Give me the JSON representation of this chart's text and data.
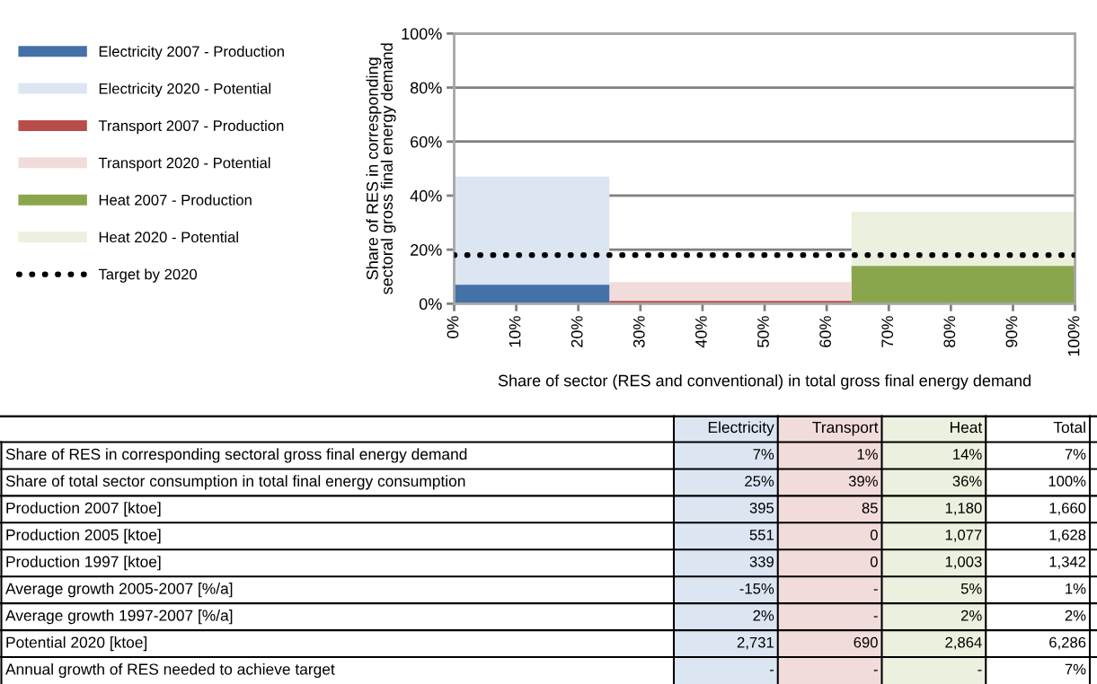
{
  "chart_data": [
    {
      "type": "area",
      "xlabel": "Share of sector (RES and conventional) in total gross final energy demand",
      "ylabel": "Share of RES in corresponding\nsectoral gross final energy demand",
      "series": [
        {
          "name": "Electricity 2007 - Production",
          "color": "#4571a9",
          "x": [
            0,
            25
          ],
          "values": [
            7,
            7
          ]
        },
        {
          "name": "Electricity 2020 - Potential",
          "color": "#dce6f2",
          "x": [
            0,
            25
          ],
          "values": [
            47,
            47
          ]
        },
        {
          "name": "Transport 2007 - Production",
          "color": "#b84d4a",
          "x": [
            25,
            64
          ],
          "values": [
            1,
            1
          ]
        },
        {
          "name": "Transport 2020 - Potential",
          "color": "#f2dcdb",
          "x": [
            25,
            64
          ],
          "values": [
            8,
            8
          ]
        },
        {
          "name": "Heat 2007 - Production",
          "color": "#8aa64d",
          "x": [
            64,
            100
          ],
          "values": [
            14,
            14
          ]
        },
        {
          "name": "Heat 2020 - Potential",
          "color": "#ebf1de",
          "x": [
            64,
            100
          ],
          "values": [
            34,
            34
          ]
        },
        {
          "name": "Target by 2020",
          "type": "line",
          "color": "#000000",
          "line_style": "dotted",
          "x": [
            0,
            100
          ],
          "values": [
            18,
            18
          ]
        }
      ],
      "xlim": [
        0,
        100
      ],
      "ylim": [
        0,
        100
      ],
      "xticks": [
        {
          "value": 0,
          "label": "0%"
        },
        {
          "value": 10,
          "label": "10%"
        },
        {
          "value": 20,
          "label": "20%"
        },
        {
          "value": 30,
          "label": "30%"
        },
        {
          "value": 40,
          "label": "40%"
        },
        {
          "value": 50,
          "label": "50%"
        },
        {
          "value": 60,
          "label": "60%"
        },
        {
          "value": 70,
          "label": "70%"
        },
        {
          "value": 80,
          "label": "80%"
        },
        {
          "value": 90,
          "label": "90%"
        },
        {
          "value": 100,
          "label": "100%"
        }
      ],
      "yticks": [
        {
          "value": 0,
          "label": "0%"
        },
        {
          "value": 20,
          "label": "20%"
        },
        {
          "value": 40,
          "label": "40%"
        },
        {
          "value": 60,
          "label": "60%"
        },
        {
          "value": 80,
          "label": "80%"
        },
        {
          "value": 100,
          "label": "100%"
        }
      ],
      "grid": "y",
      "legend": "left"
    },
    {
      "type": "other",
      "categories": [
        "Electricity",
        "Transport",
        "Heat",
        "Total"
      ],
      "colors": [
        "#dce6f2",
        "#f2dcdb",
        "#ebf1de",
        "#ffffff"
      ],
      "y_categories": [
        "Share of RES in corresponding sectoral gross final energy demand",
        "Share of total sector consumption in total final energy consumption",
        "Production 2007 [ktoe]",
        "Production 2005 [ktoe]",
        "Production 1997 [ktoe]",
        "Average growth 2005-2007 [%/a]",
        "Average growth 1997-2007 [%/a]",
        "Potential 2020 [ktoe]",
        "Annual growth of RES needed to achieve target"
      ],
      "cell_labels": [
        [
          "7%",
          "1%",
          "14%",
          "7%"
        ],
        [
          "25%",
          "39%",
          "36%",
          "100%"
        ],
        [
          "395",
          "85",
          "1,180",
          "1,660"
        ],
        [
          "551",
          "0",
          "1,077",
          "1,628"
        ],
        [
          "339",
          "0",
          "1,003",
          "1,342"
        ],
        [
          "-15%",
          "-",
          "5%",
          "1%"
        ],
        [
          "2%",
          "-",
          "2%",
          "2%"
        ],
        [
          "2,731",
          "690",
          "2,864",
          "6,286"
        ],
        [
          "-",
          "-",
          "-",
          "7%"
        ]
      ]
    }
  ]
}
